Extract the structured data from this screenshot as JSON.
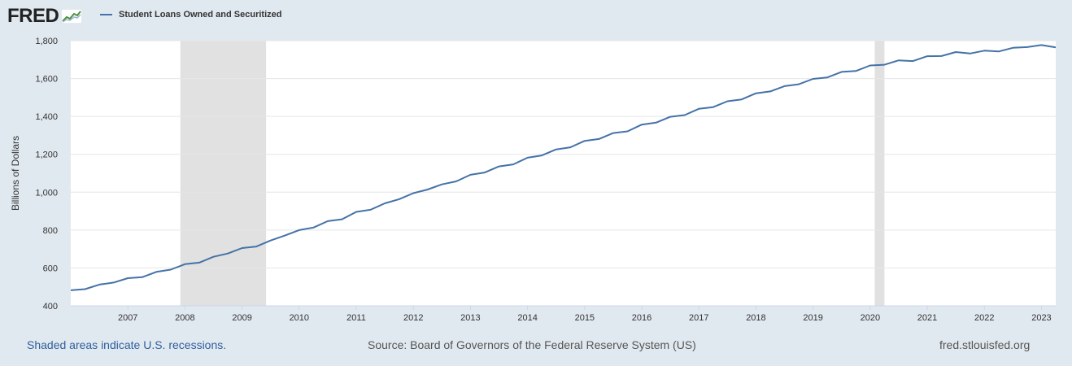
{
  "header": {
    "logo_text": "FRED",
    "logo_icon": "trend-line-icon",
    "legend_label": "Student Loans Owned and Securitized",
    "legend_color": "#4572a7"
  },
  "footer": {
    "recession_note": "Shaded areas indicate U.S. recessions.",
    "source": "Source: Board of Governors of the Federal Reserve System (US)",
    "site": "fred.stlouisfed.org"
  },
  "chart_data": {
    "type": "line",
    "title": "",
    "xlabel": "",
    "ylabel": "Billions of Dollars",
    "ylim": [
      400,
      1800
    ],
    "xlim": [
      2006.0,
      2023.25
    ],
    "yticks": [
      400,
      600,
      800,
      1000,
      1200,
      1400,
      1600,
      1800
    ],
    "y_tick_labels": [
      "400",
      "600",
      "800",
      "1,000",
      "1,200",
      "1,400",
      "1,600",
      "1,800"
    ],
    "xticks": [
      2007,
      2008,
      2009,
      2010,
      2011,
      2012,
      2013,
      2014,
      2015,
      2016,
      2017,
      2018,
      2019,
      2020,
      2021,
      2022,
      2023
    ],
    "x_tick_labels": [
      "2007",
      "2008",
      "2009",
      "2010",
      "2011",
      "2012",
      "2013",
      "2014",
      "2015",
      "2016",
      "2017",
      "2018",
      "2019",
      "2020",
      "2021",
      "2022",
      "2023"
    ],
    "grid": true,
    "line_color": "#4572a7",
    "recession_color": "#e1e1e1",
    "recessions": [
      [
        2007.92,
        2009.42
      ],
      [
        2020.08,
        2020.25
      ]
    ],
    "series": [
      {
        "name": "Student Loans Owned and Securitized",
        "x": [
          2006.0,
          2006.25,
          2006.5,
          2006.75,
          2007.0,
          2007.25,
          2007.5,
          2007.75,
          2008.0,
          2008.25,
          2008.5,
          2008.75,
          2009.0,
          2009.25,
          2009.5,
          2009.75,
          2010.0,
          2010.25,
          2010.5,
          2010.75,
          2011.0,
          2011.25,
          2011.5,
          2011.75,
          2012.0,
          2012.25,
          2012.5,
          2012.75,
          2013.0,
          2013.25,
          2013.5,
          2013.75,
          2014.0,
          2014.25,
          2014.5,
          2014.75,
          2015.0,
          2015.25,
          2015.5,
          2015.75,
          2016.0,
          2016.25,
          2016.5,
          2016.75,
          2017.0,
          2017.25,
          2017.5,
          2017.75,
          2018.0,
          2018.25,
          2018.5,
          2018.75,
          2019.0,
          2019.25,
          2019.5,
          2019.75,
          2020.0,
          2020.25,
          2020.5,
          2020.75,
          2021.0,
          2021.25,
          2021.5,
          2021.75,
          2022.0,
          2022.25,
          2022.5,
          2022.75,
          2023.0,
          2023.25
        ],
        "values": [
          482,
          488,
          512,
          523,
          546,
          551,
          579,
          591,
          620,
          628,
          659,
          676,
          705,
          713,
          745,
          771,
          800,
          813,
          847,
          857,
          896,
          907,
          941,
          963,
          995,
          1014,
          1041,
          1057,
          1092,
          1104,
          1136,
          1147,
          1182,
          1194,
          1226,
          1237,
          1271,
          1281,
          1312,
          1321,
          1357,
          1367,
          1398,
          1407,
          1440,
          1449,
          1480,
          1490,
          1522,
          1532,
          1560,
          1570,
          1598,
          1606,
          1635,
          1640,
          1669,
          1673,
          1696,
          1692,
          1718,
          1719,
          1740,
          1732,
          1747,
          1743,
          1762,
          1766,
          1777,
          1765
        ]
      }
    ]
  }
}
